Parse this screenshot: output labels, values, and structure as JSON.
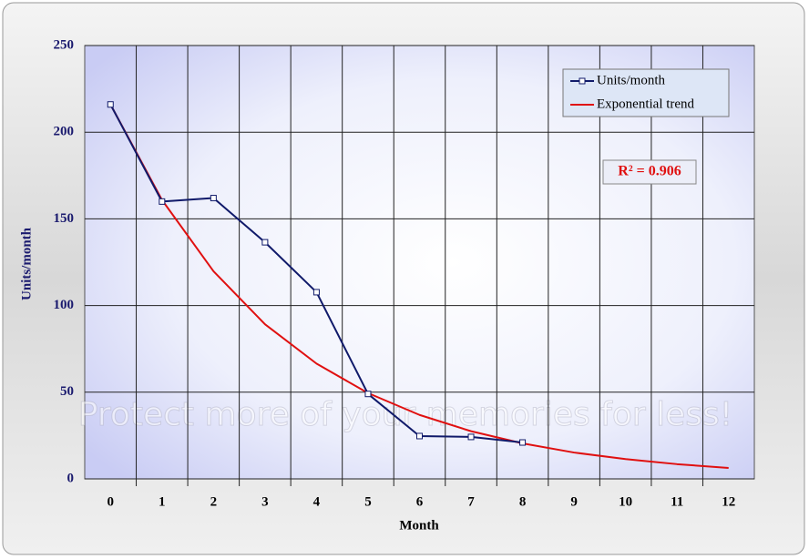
{
  "chart_data": {
    "type": "line",
    "watermark": "Protect more of your memories for less!",
    "x_label": "Month",
    "y_label": "Units/month",
    "categories": [
      "0",
      "1",
      "2",
      "3",
      "4",
      "5",
      "6",
      "7",
      "8",
      "9",
      "10",
      "11",
      "12"
    ],
    "series": [
      {
        "name": "Units/month",
        "color": "#101a6a",
        "values": [
          216,
          160,
          162,
          136.5,
          107.7,
          49,
          24.7,
          24.2,
          21,
          null,
          null,
          null,
          null
        ]
      },
      {
        "name": "Exponential trend",
        "color": "#e01010",
        "values": [
          216,
          160.9,
          119.8,
          89.2,
          66.5,
          49.5,
          36.9,
          27.5,
          20.5,
          15.2,
          11.4,
          8.5,
          6.3
        ]
      }
    ],
    "annotation": "R² = 0.906",
    "ylim": [
      0,
      250
    ],
    "yticks": [
      0,
      50,
      100,
      150,
      200,
      250
    ],
    "grid": true,
    "legend": "top-right"
  }
}
